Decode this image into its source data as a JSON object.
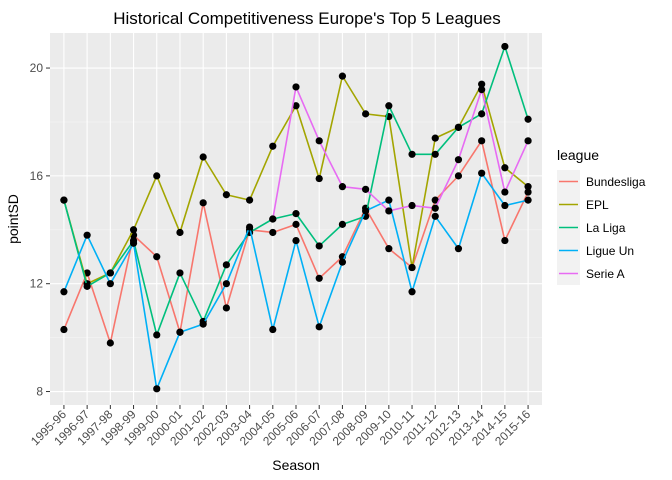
{
  "chart_data": {
    "type": "line",
    "title": "Historical Competitiveness Europe's Top 5 Leagues",
    "xlabel": "Season",
    "ylabel": "pointSD",
    "ylim": [
      7.5,
      21.3
    ],
    "yticks": [
      8,
      12,
      16,
      20
    ],
    "grid": true,
    "legend_position": "right",
    "legend_title": "league",
    "categories": [
      "1995-96",
      "1996-97",
      "1997-98",
      "1998-99",
      "1999-00",
      "2000-01",
      "2001-02",
      "2002-03",
      "2003-04",
      "2004-05",
      "2005-06",
      "2006-07",
      "2007-08",
      "2008-09",
      "2009-10",
      "2010-11",
      "2011-12",
      "2012-13",
      "2013-14",
      "2014-15",
      "2015-16"
    ],
    "series": [
      {
        "name": "Bundesliga",
        "color": "#F8766D",
        "values": [
          10.3,
          12.4,
          9.8,
          13.8,
          13.0,
          10.2,
          15.0,
          11.1,
          14.0,
          13.9,
          14.2,
          12.2,
          13.0,
          14.8,
          13.3,
          12.6,
          15.1,
          16.0,
          17.3,
          13.6,
          15.4
        ]
      },
      {
        "name": "EPL",
        "color": "#A3A500",
        "values": [
          15.1,
          12.0,
          12.4,
          14.0,
          16.0,
          13.9,
          16.7,
          15.3,
          15.1,
          17.1,
          18.6,
          15.9,
          19.7,
          18.3,
          18.2,
          12.6,
          17.4,
          17.8,
          19.4,
          16.3,
          15.6
        ]
      },
      {
        "name": "La Liga",
        "color": "#00BF7D",
        "values": [
          15.1,
          11.9,
          12.4,
          13.6,
          10.1,
          12.4,
          10.6,
          12.7,
          13.9,
          14.4,
          14.6,
          13.4,
          14.2,
          14.5,
          18.6,
          16.8,
          16.8,
          17.8,
          18.3,
          20.8,
          18.1
        ]
      },
      {
        "name": "Ligue Un",
        "color": "#00B0F6",
        "values": [
          11.7,
          13.8,
          12.0,
          13.5,
          8.1,
          10.2,
          10.5,
          12.0,
          14.1,
          10.3,
          13.6,
          10.4,
          12.8,
          14.7,
          15.1,
          11.7,
          14.5,
          13.3,
          16.1,
          14.9,
          15.1
        ]
      },
      {
        "name": "Serie A",
        "color": "#E76BF3",
        "values": [
          null,
          null,
          null,
          null,
          null,
          null,
          null,
          null,
          null,
          14.4,
          19.3,
          17.3,
          15.6,
          15.5,
          14.7,
          14.9,
          14.8,
          16.6,
          19.2,
          15.4,
          17.3
        ]
      }
    ]
  }
}
